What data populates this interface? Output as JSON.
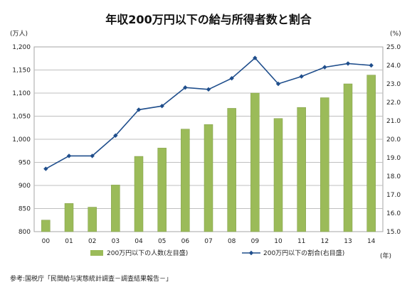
{
  "chart_data": {
    "type": "bar",
    "title": "年収200万円以下の給与所得者数と割合",
    "categories": [
      "00",
      "01",
      "02",
      "03",
      "04",
      "05",
      "06",
      "07",
      "08",
      "09",
      "10",
      "11",
      "12",
      "13",
      "14"
    ],
    "series": [
      {
        "name": "200万円以下の人数(左目盛)",
        "type": "bar",
        "axis": "left",
        "color": "#9bbb59",
        "values": [
          825,
          861,
          853,
          901,
          963,
          981,
          1022,
          1032,
          1067,
          1100,
          1045,
          1069,
          1090,
          1120,
          1139
        ]
      },
      {
        "name": "200万円以下の割合(右目盛)",
        "type": "line",
        "axis": "right",
        "color": "#1f4e8c",
        "values": [
          18.4,
          19.1,
          19.1,
          20.2,
          21.6,
          21.8,
          22.8,
          22.7,
          23.3,
          24.4,
          23.0,
          23.4,
          23.9,
          24.1,
          24.0
        ]
      }
    ],
    "ylabel": "(万人)",
    "y2label": "(%)",
    "xlabel": "(年)",
    "ylim": [
      800,
      1200
    ],
    "y2lim": [
      15.0,
      25.0
    ],
    "yticks": [
      "800",
      "850",
      "900",
      "950",
      "1,000",
      "1,050",
      "1,100",
      "1,150",
      "1,200"
    ],
    "y2ticks": [
      "15.0",
      "16.0",
      "17.0",
      "18.0",
      "19.0",
      "20.0",
      "21.0",
      "22.0",
      "23.0",
      "24.0",
      "25.0"
    ],
    "grid": true,
    "legend": "bottom",
    "source": "参考:国税庁「民間給与実態統計調査－調査結果報告－」"
  }
}
